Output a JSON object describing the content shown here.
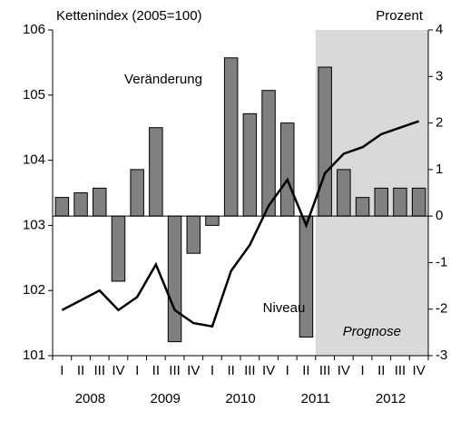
{
  "chart_data": {
    "type": "bar-line",
    "y_label": "Kettenindex (2005=100)",
    "y2_label": "Prozent",
    "categories": [
      "I",
      "II",
      "III",
      "IV",
      "I",
      "II",
      "III",
      "IV",
      "I",
      "II",
      "III",
      "IV",
      "I",
      "II",
      "III",
      "IV",
      "I",
      "II",
      "III",
      "IV"
    ],
    "years": [
      "2008",
      "2009",
      "2010",
      "2011",
      "2012"
    ],
    "forecast_label": "Prognose",
    "series": [
      {
        "name": "Veränderung",
        "type": "bar",
        "axis": "y2",
        "color": "#808080",
        "values": [
          0.4,
          0.5,
          0.6,
          -1.4,
          1.0,
          1.9,
          -2.7,
          -0.8,
          -0.2,
          3.4,
          2.2,
          2.7,
          2.0,
          -2.6,
          3.2,
          1.0,
          0.4,
          0.6,
          0.6,
          0.6
        ]
      },
      {
        "name": "Niveau",
        "type": "line",
        "axis": "y",
        "color": "#000000",
        "values": [
          101.7,
          101.85,
          102.0,
          101.7,
          101.9,
          102.4,
          101.7,
          101.5,
          101.45,
          102.3,
          102.7,
          103.3,
          103.7,
          103.0,
          103.8,
          104.1,
          104.2,
          104.4,
          104.5,
          104.6
        ]
      }
    ],
    "ylim": [
      101,
      106
    ],
    "yticks": [
      101,
      102,
      103,
      104,
      105,
      106
    ],
    "y2lim": [
      -3,
      4
    ],
    "y2ticks": [
      -3,
      -2,
      -1,
      0,
      1,
      2,
      3,
      4
    ]
  }
}
